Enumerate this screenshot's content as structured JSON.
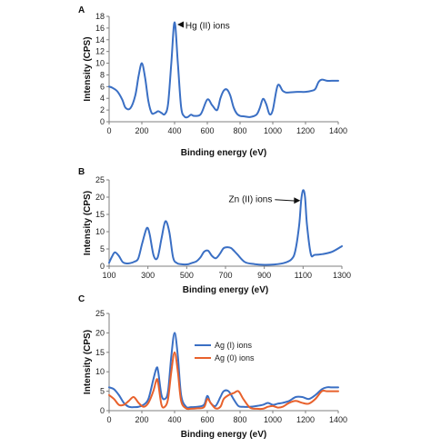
{
  "chart_data": [
    {
      "panel": "A",
      "type": "line",
      "xlabel": "Binding energy (eV)",
      "ylabel": "Intensity (CPS)",
      "xlim": [
        0,
        1400
      ],
      "ylim": [
        0,
        18
      ],
      "xticks": [
        0,
        200,
        400,
        600,
        800,
        1000,
        1200,
        1400
      ],
      "yticks": [
        0,
        2,
        4,
        6,
        8,
        10,
        12,
        14,
        16,
        18
      ],
      "annotation": {
        "text": "Hg (II) ions",
        "x": 400,
        "y": 16.6,
        "text_x": 455,
        "text_y": 15.9
      },
      "series": [
        {
          "color": "#3a6fc4",
          "x": [
            0,
            20,
            50,
            80,
            100,
            130,
            160,
            180,
            200,
            220,
            240,
            260,
            280,
            300,
            320,
            340,
            360,
            380,
            400,
            420,
            440,
            460,
            480,
            500,
            520,
            560,
            600,
            630,
            660,
            680,
            700,
            720,
            740,
            760,
            780,
            800,
            830,
            860,
            900,
            920,
            940,
            960,
            980,
            1000,
            1030,
            1060,
            1080,
            1100,
            1150,
            1200,
            1240,
            1260,
            1280,
            1300,
            1330,
            1360,
            1400
          ],
          "y": [
            6.0,
            5.8,
            5.2,
            3.8,
            2.4,
            2.3,
            4.5,
            7.8,
            10.0,
            7.5,
            3.5,
            1.5,
            1.5,
            1.8,
            1.5,
            1.3,
            3.0,
            10.0,
            17.0,
            10.0,
            2.5,
            0.9,
            0.8,
            1.2,
            1.0,
            1.3,
            3.8,
            2.8,
            2.0,
            4.0,
            5.3,
            5.5,
            4.5,
            2.5,
            1.4,
            1.0,
            0.9,
            0.8,
            1.2,
            2.3,
            3.9,
            3.0,
            1.3,
            2.0,
            6.2,
            5.3,
            5.0,
            5.0,
            5.1,
            5.1,
            5.3,
            5.6,
            6.8,
            7.2,
            7.0,
            7.0,
            7.0
          ]
        }
      ]
    },
    {
      "panel": "B",
      "type": "line",
      "xlabel": "Binding energy (eV)",
      "ylabel": "Intensity (CPS)",
      "xlim": [
        100,
        1300
      ],
      "ylim": [
        0,
        25
      ],
      "xticks": [
        100,
        300,
        500,
        700,
        900,
        1100,
        1300
      ],
      "yticks": [
        0,
        5,
        10,
        15,
        20,
        25
      ],
      "annotation": {
        "text": "Zn (II) ions",
        "x": 1100,
        "y": 19.0,
        "text_x": 950,
        "text_y": 18.5
      },
      "series": [
        {
          "color": "#3a6fc4",
          "x": [
            100,
            115,
            130,
            150,
            170,
            190,
            210,
            230,
            250,
            270,
            290,
            300,
            310,
            330,
            350,
            370,
            390,
            410,
            430,
            450,
            470,
            490,
            510,
            530,
            550,
            570,
            590,
            610,
            630,
            650,
            670,
            690,
            710,
            730,
            760,
            800,
            850,
            900,
            950,
            1000,
            1040,
            1060,
            1080,
            1090,
            1100,
            1110,
            1120,
            1140,
            1160,
            1200,
            1250,
            1300
          ],
          "y": [
            1.0,
            2.8,
            4.0,
            3.0,
            1.2,
            0.8,
            0.9,
            1.3,
            2.2,
            6.5,
            10.5,
            11.0,
            9.0,
            3.0,
            2.5,
            8.0,
            13.0,
            10.0,
            2.5,
            0.9,
            0.6,
            0.5,
            0.6,
            1.0,
            1.4,
            2.5,
            4.2,
            4.5,
            3.0,
            2.3,
            3.5,
            5.2,
            5.5,
            5.2,
            3.5,
            1.2,
            0.6,
            0.4,
            0.5,
            0.9,
            2.0,
            4.5,
            12.0,
            19.0,
            22.0,
            20.0,
            12.0,
            3.5,
            3.3,
            3.5,
            4.2,
            5.8
          ]
        }
      ]
    },
    {
      "panel": "C",
      "type": "line",
      "xlabel": "Binding energy (eV)",
      "ylabel": "Intensity (CPS)",
      "xlim": [
        0,
        1400
      ],
      "ylim": [
        0,
        25
      ],
      "xticks": [
        0,
        200,
        400,
        600,
        800,
        1000,
        1200,
        1400
      ],
      "yticks": [
        0,
        5,
        10,
        15,
        20,
        25
      ],
      "legend": "right",
      "series": [
        {
          "name": "Ag (I) ions",
          "color": "#3a6fc4",
          "x": [
            0,
            30,
            60,
            90,
            120,
            150,
            180,
            210,
            240,
            270,
            290,
            300,
            320,
            340,
            360,
            380,
            400,
            420,
            440,
            470,
            500,
            540,
            580,
            600,
            620,
            650,
            680,
            700,
            730,
            760,
            790,
            820,
            860,
            900,
            940,
            970,
            1000,
            1030,
            1060,
            1100,
            1140,
            1180,
            1220,
            1260,
            1300,
            1330,
            1360,
            1400
          ],
          "y": [
            6.0,
            5.5,
            4.0,
            2.0,
            1.0,
            0.9,
            1.0,
            1.5,
            3.0,
            8.0,
            11.0,
            10.0,
            4.0,
            3.0,
            5.0,
            14.0,
            20.0,
            14.0,
            4.0,
            1.0,
            0.9,
            1.0,
            1.5,
            3.8,
            2.0,
            1.2,
            3.5,
            5.0,
            5.0,
            3.0,
            1.2,
            1.0,
            1.0,
            1.2,
            1.5,
            2.0,
            1.5,
            1.8,
            2.0,
            2.5,
            3.5,
            3.5,
            3.0,
            4.0,
            5.5,
            6.0,
            6.0,
            6.0
          ]
        },
        {
          "name": "Ag (0) ions",
          "color": "#e8612c",
          "x": [
            0,
            30,
            60,
            90,
            120,
            150,
            180,
            210,
            240,
            270,
            290,
            300,
            320,
            340,
            360,
            380,
            400,
            420,
            440,
            470,
            500,
            540,
            580,
            600,
            620,
            650,
            680,
            700,
            730,
            760,
            790,
            820,
            860,
            900,
            940,
            970,
            1000,
            1030,
            1060,
            1100,
            1140,
            1180,
            1220,
            1260,
            1300,
            1330,
            1360,
            1400
          ],
          "y": [
            4.0,
            3.0,
            1.5,
            1.5,
            2.5,
            3.5,
            2.0,
            1.0,
            2.0,
            5.0,
            8.0,
            7.0,
            1.5,
            1.0,
            3.0,
            10.0,
            15.0,
            10.0,
            2.5,
            0.6,
            0.5,
            0.6,
            0.9,
            3.0,
            2.0,
            0.6,
            1.0,
            3.0,
            4.0,
            4.5,
            5.0,
            3.0,
            0.8,
            0.5,
            0.5,
            1.0,
            1.2,
            0.8,
            1.0,
            2.0,
            2.5,
            2.0,
            1.8,
            3.0,
            5.0,
            5.0,
            5.0,
            5.0
          ]
        }
      ]
    }
  ]
}
